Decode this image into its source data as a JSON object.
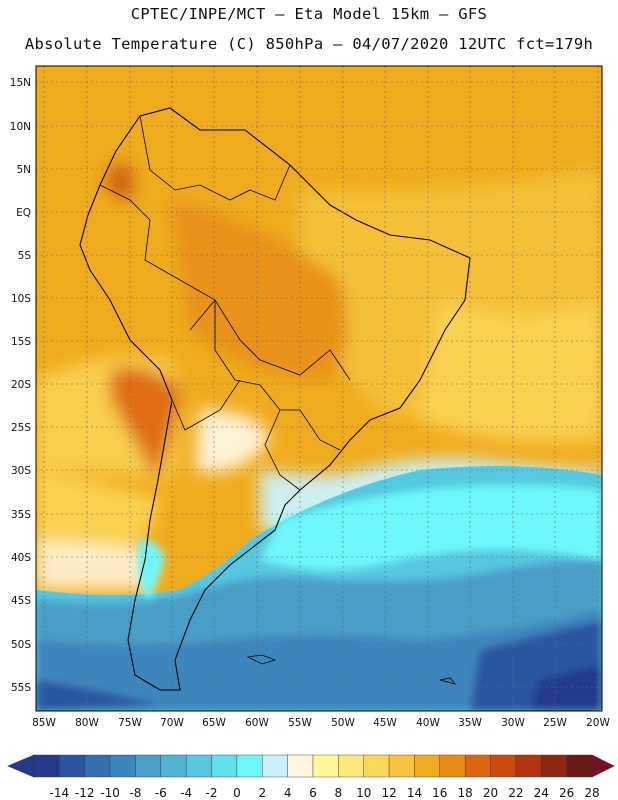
{
  "title": {
    "line1": "CPTEC/INPE/MCT –  Eta Model 15km – GFS",
    "line2": "Absolute Temperature (C) 850hPa – 04/07/2020 12UTC fct=179h"
  },
  "lat_labels": [
    "15N",
    "10N",
    "5N",
    "EQ",
    "5S",
    "10S",
    "15S",
    "20S",
    "25S",
    "30S",
    "35S",
    "40S",
    "45S",
    "50S",
    "55S"
  ],
  "lon_labels": [
    "85W",
    "80W",
    "75W",
    "70W",
    "65W",
    "60W",
    "55W",
    "50W",
    "45W",
    "40W",
    "35W",
    "30W",
    "25W",
    "20W"
  ],
  "colorbar": {
    "labels": [
      "-14",
      "-12",
      "-10",
      "-8",
      "-6",
      "-4",
      "-2",
      "0",
      "2",
      "4",
      "6",
      "8",
      "10",
      "12",
      "14",
      "16",
      "18",
      "20",
      "22",
      "24",
      "26",
      "28"
    ],
    "colors": [
      "#233a8c",
      "#2c55a0",
      "#3470b0",
      "#3c86bd",
      "#4a9ec8",
      "#52b2d3",
      "#56c8e0",
      "#5ee2ec",
      "#6ef8fa",
      "#cbf2fa",
      "#fff6e0",
      "#fff79c",
      "#ffe87a",
      "#fbd75a",
      "#f6c43e",
      "#f0ac1e",
      "#e88c14",
      "#dd640c",
      "#cc4a0c",
      "#b33410",
      "#8e2612",
      "#6a1a12"
    ]
  }
}
